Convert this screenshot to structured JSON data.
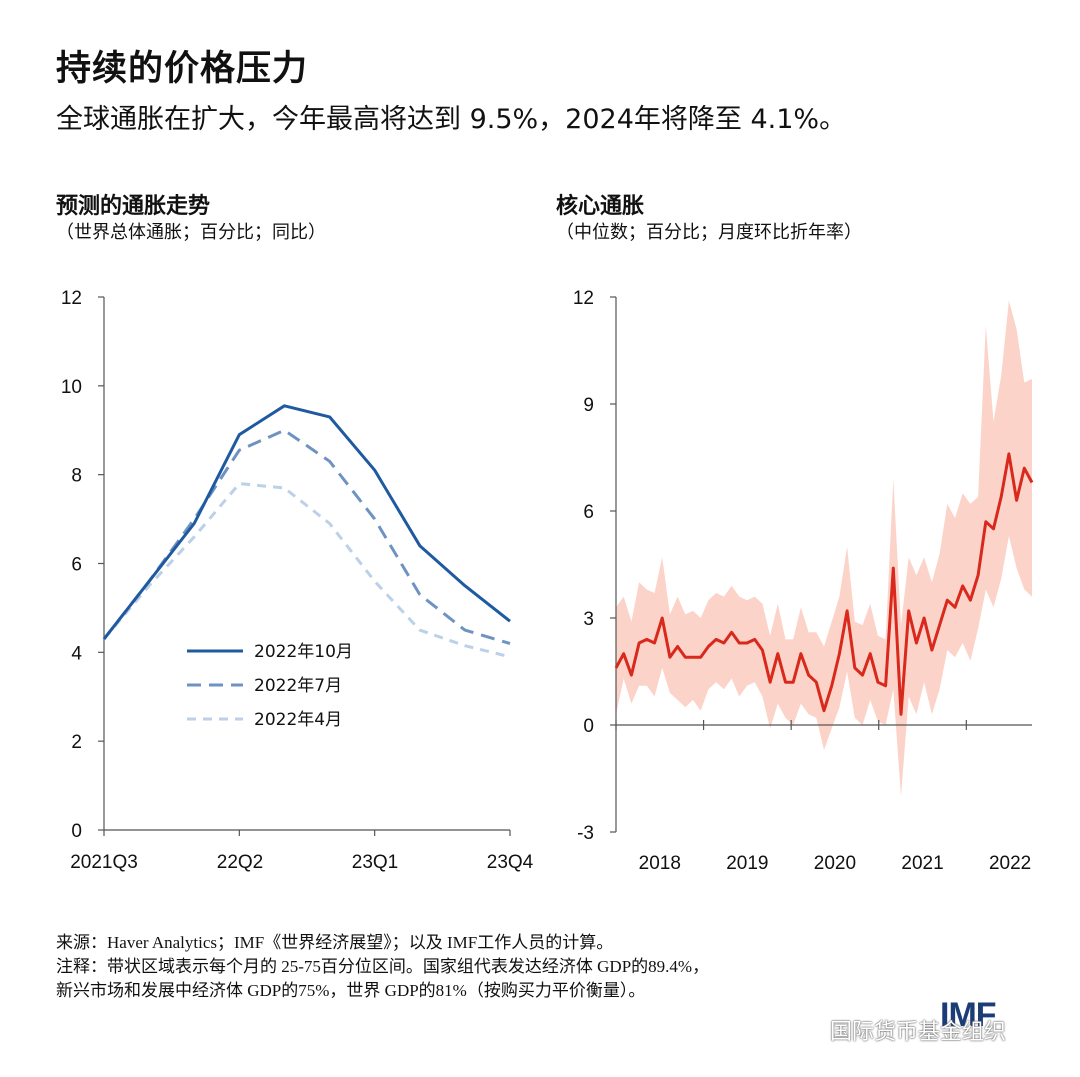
{
  "title": "持续的价格压力",
  "subtitle": "全球通胀在扩大，今年最高将达到 9.5%，2024年将降至 4.1%。",
  "colors": {
    "oct": "#1f5aa0",
    "jul": "#6e93c2",
    "apr": "#bcd0e8",
    "core_line": "#d9291c",
    "core_band": "#fbcbbf"
  },
  "chart_data": [
    {
      "type": "line",
      "title": "预测的通胀走势",
      "subtitle": "（世界总体通胀；百分比；同比）",
      "x_ticks": [
        "2021Q3",
        "22Q2",
        "23Q1",
        "23Q4"
      ],
      "y_ticks": [
        "0",
        "2",
        "4",
        "6",
        "8",
        "10",
        "12"
      ],
      "ylim": [
        0,
        12
      ],
      "x_count": 10,
      "series": [
        {
          "name": "2022年10月",
          "style": "solid",
          "values": [
            4.3,
            5.6,
            6.9,
            8.9,
            9.55,
            9.3,
            8.1,
            6.4,
            5.5,
            4.7
          ]
        },
        {
          "name": "2022年7月",
          "style": "dashed",
          "values": [
            4.3,
            5.6,
            7.0,
            8.55,
            9.0,
            8.3,
            7.0,
            5.3,
            4.5,
            4.2
          ]
        },
        {
          "name": "2022年4月",
          "style": "dotted",
          "values": [
            4.3,
            5.5,
            6.6,
            7.8,
            7.7,
            6.9,
            5.6,
            4.5,
            4.15,
            3.9
          ]
        }
      ]
    },
    {
      "type": "area",
      "title": "核心通胀",
      "subtitle": "（中位数；百分比；月度环比折年率）",
      "x_ticks": [
        "2018",
        "2019",
        "2020",
        "2021",
        "2022"
      ],
      "y_ticks": [
        "-3",
        "0",
        "3",
        "6",
        "9",
        "12"
      ],
      "ylim": [
        -3,
        12
      ],
      "x_range": [
        2018,
        2022.75
      ],
      "median": [
        1.6,
        2.0,
        1.4,
        2.3,
        2.4,
        2.3,
        3.0,
        1.9,
        2.2,
        1.9,
        1.9,
        1.9,
        2.2,
        2.4,
        2.3,
        2.6,
        2.3,
        2.3,
        2.4,
        2.1,
        1.2,
        2.0,
        1.2,
        1.2,
        2.0,
        1.4,
        1.2,
        0.4,
        1.1,
        2.0,
        3.2,
        1.6,
        1.4,
        2.0,
        1.2,
        1.1,
        4.4,
        0.3,
        3.2,
        2.3,
        3.0,
        2.1,
        2.8,
        3.5,
        3.3,
        3.9,
        3.5,
        4.2,
        5.7,
        5.5,
        6.4,
        7.6,
        6.3,
        7.2,
        6.8
      ],
      "p25": [
        0.3,
        1.3,
        0.6,
        1.1,
        1.1,
        0.8,
        1.6,
        0.9,
        0.7,
        0.5,
        0.7,
        0.4,
        1.0,
        1.2,
        1.0,
        1.3,
        0.8,
        1.1,
        1.2,
        0.8,
        -0.1,
        0.6,
        0.2,
        0.0,
        0.6,
        0.3,
        0.2,
        -0.7,
        -0.1,
        0.5,
        1.5,
        0.2,
        0.0,
        0.7,
        0.1,
        0.0,
        1.0,
        -2.0,
        0.8,
        0.3,
        1.2,
        0.3,
        1.0,
        2.1,
        1.9,
        2.3,
        1.8,
        2.7,
        3.8,
        3.3,
        4.1,
        5.3,
        4.4,
        3.8,
        3.6
      ],
      "p75": [
        3.3,
        3.6,
        2.9,
        4.0,
        3.8,
        3.7,
        4.7,
        3.1,
        3.6,
        3.1,
        3.2,
        3.0,
        3.5,
        3.7,
        3.6,
        3.9,
        3.6,
        3.5,
        3.6,
        3.4,
        2.5,
        3.4,
        2.4,
        2.4,
        3.3,
        2.6,
        2.6,
        2.2,
        2.9,
        3.6,
        5.0,
        2.9,
        2.8,
        3.4,
        2.5,
        2.4,
        6.9,
        2.8,
        4.7,
        4.2,
        4.7,
        4.0,
        4.8,
        6.2,
        5.8,
        6.5,
        6.2,
        6.4,
        11.2,
        8.5,
        9.8,
        11.9,
        11.1,
        9.6,
        9.7
      ]
    }
  ],
  "footer": {
    "source": "来源：Haver Analytics；IMF《世界经济展望》；以及 IMF工作人员的计算。",
    "note_line1": "注释：带状区域表示每个月的 25-75百分位区间。国家组代表发达经济体 GDP的89.4%，",
    "note_line2": "新兴市场和发展中经济体 GDP的75%，世界 GDP的81%（按购买力平价衡量）。",
    "logo": "IMF",
    "watermark": "国际货币基金组织",
    "watermark_icon": "wechat-icon"
  }
}
